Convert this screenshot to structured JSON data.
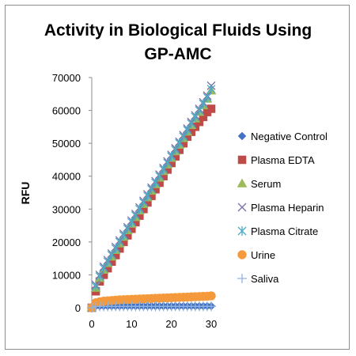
{
  "chart_data": {
    "type": "scatter",
    "title": "Activity in Biological Fluids Using GP-AMC",
    "title_lines": [
      "Activity in Biological Fluids Using",
      "GP-AMC"
    ],
    "xlabel": "",
    "ylabel": "RFU",
    "xlim": [
      0,
      30
    ],
    "ylim": [
      0,
      70000
    ],
    "x_ticks": [
      "0",
      "10",
      "20",
      "30"
    ],
    "y_ticks": [
      "0",
      "10000",
      "20000",
      "30000",
      "40000",
      "50000",
      "60000",
      "70000"
    ],
    "grid": false,
    "legend_position": "right",
    "series": [
      {
        "name": "Negative Control",
        "marker": "diamond",
        "color": "#4472c4",
        "x": [
          0,
          1,
          2,
          3,
          4,
          5,
          6,
          7,
          8,
          9,
          10,
          11,
          12,
          13,
          14,
          15,
          16,
          17,
          18,
          19,
          20,
          21,
          22,
          23,
          24,
          25,
          26,
          27,
          28,
          29,
          30
        ],
        "y": [
          0,
          500,
          500,
          500,
          500,
          500,
          500,
          500,
          500,
          500,
          500,
          500,
          500,
          500,
          500,
          500,
          500,
          500,
          500,
          500,
          500,
          500,
          500,
          500,
          500,
          500,
          500,
          500,
          500,
          500,
          500
        ]
      },
      {
        "name": "Plasma EDTA",
        "marker": "square",
        "color": "#be4b48",
        "x": [
          0,
          1,
          2,
          3,
          4,
          5,
          6,
          7,
          8,
          9,
          10,
          11,
          12,
          13,
          14,
          15,
          16,
          17,
          18,
          19,
          20,
          21,
          22,
          23,
          24,
          25,
          26,
          27,
          28,
          29,
          30
        ],
        "y": [
          0,
          5000,
          8000,
          10000,
          12000,
          14000,
          16000,
          18000,
          20000,
          22000,
          24000,
          26000,
          28000,
          30000,
          32000,
          34000,
          36000,
          38000,
          40000,
          42000,
          44000,
          46000,
          48000,
          50000,
          52000,
          53500,
          55000,
          56500,
          58000,
          59500,
          60500
        ]
      },
      {
        "name": "Serum",
        "marker": "triangle",
        "color": "#9bbb59",
        "x": [
          0,
          1,
          2,
          3,
          4,
          5,
          6,
          7,
          8,
          9,
          10,
          11,
          12,
          13,
          14,
          15,
          16,
          17,
          18,
          19,
          20,
          21,
          22,
          23,
          24,
          25,
          26,
          27,
          28,
          29,
          30
        ],
        "y": [
          0,
          6000,
          9000,
          11500,
          13500,
          15500,
          17500,
          19500,
          21500,
          23500,
          25500,
          27500,
          29500,
          31500,
          33500,
          35500,
          37500,
          39500,
          41500,
          43500,
          45500,
          47500,
          49500,
          51500,
          53500,
          55500,
          57500,
          59500,
          61500,
          63500,
          66000
        ]
      },
      {
        "name": "Plasma Heparin",
        "marker": "x",
        "color": "#7f6fa8",
        "x": [
          0,
          1,
          2,
          3,
          4,
          5,
          6,
          7,
          8,
          9,
          10,
          11,
          12,
          13,
          14,
          15,
          16,
          17,
          18,
          19,
          20,
          21,
          22,
          23,
          24,
          25,
          26,
          27,
          28,
          29,
          30
        ],
        "y": [
          0,
          7000,
          10000,
          12500,
          14500,
          16500,
          18500,
          20500,
          22500,
          24500,
          26500,
          28500,
          30500,
          32500,
          34500,
          36500,
          38500,
          40500,
          42500,
          44500,
          46500,
          48500,
          50500,
          52500,
          54500,
          56500,
          58500,
          60500,
          62500,
          64500,
          67500
        ]
      },
      {
        "name": "Plasma Citrate",
        "marker": "asterisk",
        "color": "#4bacc6",
        "x": [
          0,
          1,
          2,
          3,
          4,
          5,
          6,
          7,
          8,
          9,
          10,
          11,
          12,
          13,
          14,
          15,
          16,
          17,
          18,
          19,
          20,
          21,
          22,
          23,
          24,
          25,
          26,
          27,
          28,
          29,
          30
        ],
        "y": [
          0,
          6500,
          9500,
          12000,
          14000,
          16000,
          18000,
          20000,
          22000,
          24000,
          26000,
          28000,
          30000,
          32000,
          34000,
          36000,
          38000,
          40000,
          42000,
          44000,
          46000,
          48000,
          50000,
          52000,
          54000,
          56000,
          58000,
          60000,
          62000,
          64000,
          66500
        ]
      },
      {
        "name": "Urine",
        "marker": "circle",
        "color": "#f59a3c",
        "x": [
          0,
          1,
          2,
          3,
          4,
          5,
          6,
          7,
          8,
          9,
          10,
          11,
          12,
          13,
          14,
          15,
          16,
          17,
          18,
          19,
          20,
          21,
          22,
          23,
          24,
          25,
          26,
          27,
          28,
          29,
          30
        ],
        "y": [
          0,
          1500,
          1800,
          2000,
          2100,
          2200,
          2300,
          2400,
          2450,
          2500,
          2550,
          2600,
          2650,
          2700,
          2750,
          2800,
          2850,
          2900,
          2950,
          3000,
          3050,
          3100,
          3150,
          3200,
          3250,
          3300,
          3350,
          3400,
          3450,
          3500,
          3600
        ]
      },
      {
        "name": "Saliva",
        "marker": "plus",
        "color": "#8fb3e0",
        "x": [
          0,
          1,
          2,
          3,
          4,
          5,
          6,
          7,
          8,
          9,
          10,
          11,
          12,
          13,
          14,
          15,
          16,
          17,
          18,
          19,
          20,
          21,
          22,
          23,
          24,
          25,
          26,
          27,
          28,
          29,
          30
        ],
        "y": [
          0,
          400,
          400,
          400,
          400,
          400,
          400,
          400,
          400,
          400,
          400,
          400,
          400,
          400,
          400,
          400,
          400,
          400,
          400,
          400,
          400,
          400,
          400,
          400,
          400,
          400,
          400,
          400,
          400,
          400,
          400
        ]
      }
    ]
  }
}
